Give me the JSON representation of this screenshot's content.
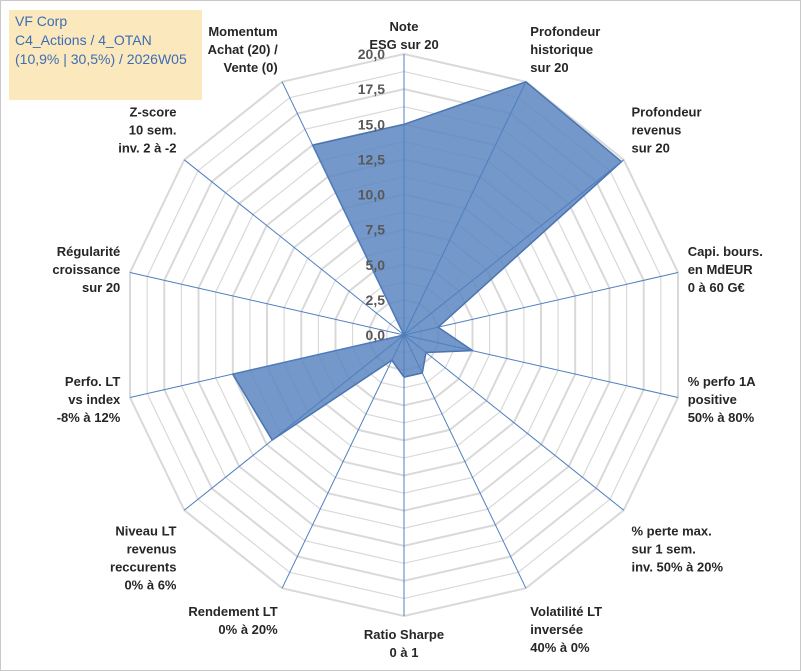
{
  "title_box": {
    "line1": "VF Corp",
    "line2": "C4_Actions / 4_OTAN",
    "line3": "(10,9% | 30,5%) / 2026W05"
  },
  "colors": {
    "fill": "#5b86c0",
    "stroke": "#4a74b0",
    "grid": "#d9d9d9",
    "spoke": "#4f7fc0",
    "title_bg": "#fbe8bd",
    "title_text": "#3d6eb4"
  },
  "chart_data": {
    "type": "radar",
    "rmin": 0,
    "rmax": 20,
    "ticks": [
      "0,0",
      "2,5",
      "5,0",
      "7,5",
      "10,0",
      "12,5",
      "15,0",
      "17,5",
      "20,0"
    ],
    "categories": [
      [
        "Note",
        "ESG sur 20"
      ],
      [
        "Profondeur",
        "historique",
        "sur 20"
      ],
      [
        "Profondeur",
        "revenus",
        "sur 20"
      ],
      [
        "Capi. bours.",
        "en MdEUR",
        "0 à 60 G€"
      ],
      [
        "% perfo 1A",
        "positive",
        "50% à 80%"
      ],
      [
        "% perte max.",
        "sur 1 sem.",
        "inv. 50% à 20%"
      ],
      [
        "Volatilité LT",
        "inversée",
        "40% à 0%"
      ],
      [
        "Ratio Sharpe",
        "0 à 1"
      ],
      [
        "Rendement LT",
        "0% à 20%"
      ],
      [
        "Niveau LT",
        "revenus",
        "reccurents",
        "0% à 6%"
      ],
      [
        "Perfo. LT",
        "vs index",
        "-8% à 12%"
      ],
      [
        "Régularité",
        "croissance",
        "sur 20"
      ],
      [
        "Z-score",
        "10 sem.",
        "inv. 2 à -2"
      ],
      [
        "Momentum",
        "Achat (20) /",
        "Vente (0)"
      ]
    ],
    "series": [
      {
        "name": "VF Corp",
        "values": [
          15.0,
          20.0,
          19.8,
          2.5,
          5.0,
          2.0,
          3.0,
          3.0,
          2.0,
          12.0,
          12.5,
          0.0,
          0.0,
          15.0
        ]
      }
    ]
  }
}
